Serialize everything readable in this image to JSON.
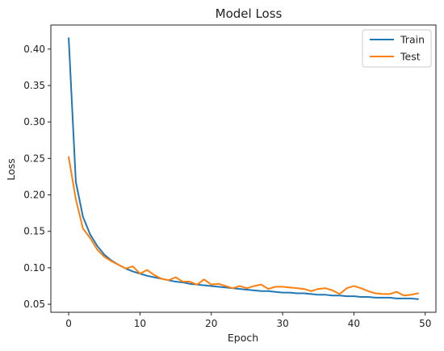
{
  "chart_data": {
    "type": "line",
    "title": "Model Loss",
    "xlabel": "Epoch",
    "ylabel": "Loss",
    "xlim": [
      -2.5,
      51.5
    ],
    "ylim": [
      0.039,
      0.433
    ],
    "xticks": [
      0,
      10,
      20,
      30,
      40,
      50
    ],
    "yticks": [
      0.05,
      0.1,
      0.15,
      0.2,
      0.25,
      0.3,
      0.35,
      0.4
    ],
    "grid": false,
    "legend_position": "top-right",
    "x": [
      0,
      1,
      2,
      3,
      4,
      5,
      6,
      7,
      8,
      9,
      10,
      11,
      12,
      13,
      14,
      15,
      16,
      17,
      18,
      19,
      20,
      21,
      22,
      23,
      24,
      25,
      26,
      27,
      28,
      29,
      30,
      31,
      32,
      33,
      34,
      35,
      36,
      37,
      38,
      39,
      40,
      41,
      42,
      43,
      44,
      45,
      46,
      47,
      48,
      49
    ],
    "series": [
      {
        "name": "Train",
        "color": "#1f77b4",
        "values": [
          0.415,
          0.218,
          0.17,
          0.146,
          0.13,
          0.118,
          0.11,
          0.104,
          0.099,
          0.095,
          0.092,
          0.089,
          0.087,
          0.085,
          0.083,
          0.081,
          0.08,
          0.078,
          0.077,
          0.076,
          0.075,
          0.074,
          0.073,
          0.072,
          0.071,
          0.07,
          0.069,
          0.068,
          0.068,
          0.067,
          0.066,
          0.066,
          0.065,
          0.065,
          0.064,
          0.063,
          0.063,
          0.062,
          0.062,
          0.061,
          0.061,
          0.06,
          0.06,
          0.059,
          0.059,
          0.059,
          0.058,
          0.058,
          0.058,
          0.057
        ]
      },
      {
        "name": "Test",
        "color": "#ff7f0e",
        "values": [
          0.252,
          0.194,
          0.154,
          0.141,
          0.125,
          0.115,
          0.109,
          0.104,
          0.099,
          0.102,
          0.092,
          0.097,
          0.09,
          0.085,
          0.083,
          0.087,
          0.081,
          0.081,
          0.077,
          0.084,
          0.077,
          0.078,
          0.075,
          0.072,
          0.075,
          0.072,
          0.075,
          0.077,
          0.071,
          0.074,
          0.074,
          0.073,
          0.072,
          0.071,
          0.068,
          0.071,
          0.072,
          0.069,
          0.064,
          0.072,
          0.075,
          0.072,
          0.068,
          0.065,
          0.064,
          0.064,
          0.067,
          0.062,
          0.063,
          0.065
        ]
      }
    ]
  }
}
